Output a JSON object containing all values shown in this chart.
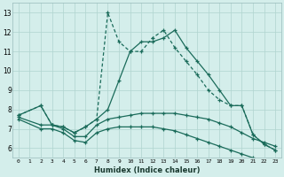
{
  "xlabel": "Humidex (Indice chaleur)",
  "bg_color": "#d4eeeb",
  "grid_color": "#b0d4cf",
  "line_color": "#1a6b5a",
  "xlim": [
    -0.5,
    23.5
  ],
  "ylim": [
    5.5,
    13.5
  ],
  "xticks": [
    0,
    1,
    2,
    3,
    4,
    5,
    6,
    7,
    8,
    9,
    10,
    11,
    12,
    13,
    14,
    15,
    16,
    17,
    18,
    19,
    20,
    21,
    22,
    23
  ],
  "yticks": [
    6,
    7,
    8,
    9,
    10,
    11,
    12,
    13
  ],
  "line1_dashed": {
    "x": [
      0,
      2,
      3,
      4,
      5,
      6,
      7,
      8,
      9,
      10,
      11,
      12,
      13,
      14,
      15,
      16,
      17,
      18,
      19,
      20,
      21,
      22,
      23
    ],
    "y": [
      7.7,
      8.2,
      7.2,
      7.1,
      6.8,
      7.1,
      7.5,
      13.0,
      11.5,
      11.0,
      11.0,
      11.7,
      12.1,
      11.2,
      10.5,
      9.8,
      9.0,
      8.5,
      8.2,
      8.2,
      6.7,
      6.2,
      5.9
    ]
  },
  "line2_solid": {
    "x": [
      0,
      2,
      3,
      4,
      5,
      6,
      7,
      8,
      9,
      10,
      11,
      12,
      13,
      14,
      15,
      16,
      17,
      18,
      19,
      20,
      21,
      22,
      23
    ],
    "y": [
      7.7,
      8.2,
      7.2,
      7.1,
      6.8,
      7.1,
      7.5,
      8.0,
      9.5,
      11.0,
      11.5,
      11.5,
      11.7,
      12.1,
      11.2,
      10.5,
      9.8,
      9.0,
      8.2,
      8.2,
      6.7,
      6.2,
      5.9
    ]
  },
  "line3_flat": {
    "x": [
      0,
      2,
      3,
      4,
      5,
      6,
      7,
      8,
      9,
      10,
      11,
      12,
      13,
      14,
      15,
      16,
      17,
      18,
      19,
      20,
      21,
      22,
      23
    ],
    "y": [
      7.6,
      7.2,
      7.2,
      7.0,
      6.6,
      6.6,
      7.2,
      7.5,
      7.6,
      7.7,
      7.8,
      7.8,
      7.8,
      7.8,
      7.7,
      7.6,
      7.5,
      7.3,
      7.1,
      6.8,
      6.5,
      6.3,
      6.1
    ]
  },
  "line4_decline": {
    "x": [
      0,
      2,
      3,
      4,
      5,
      6,
      7,
      8,
      9,
      10,
      11,
      12,
      13,
      14,
      15,
      16,
      17,
      18,
      19,
      20,
      21,
      22,
      23
    ],
    "y": [
      7.5,
      7.0,
      7.0,
      6.8,
      6.4,
      6.3,
      6.8,
      7.0,
      7.1,
      7.1,
      7.1,
      7.1,
      7.0,
      6.9,
      6.7,
      6.5,
      6.3,
      6.1,
      5.9,
      5.7,
      5.5,
      5.4,
      5.3
    ]
  }
}
